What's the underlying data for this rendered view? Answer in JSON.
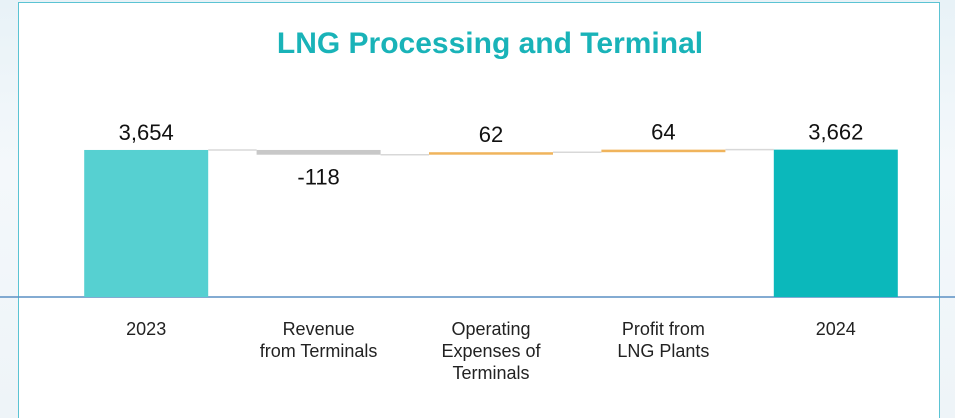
{
  "chart_data": {
    "type": "waterfall",
    "title": "LNG Processing and Terminal",
    "categories": [
      "2023",
      "Revenue\nfrom Terminals",
      "Operating\nExpenses of\nTerminals",
      "Profit from\nLNG Plants",
      "2024"
    ],
    "values": [
      3654,
      -118,
      62,
      64,
      3662
    ],
    "value_labels": [
      "3,654",
      "-118",
      "62",
      "64",
      "3,662"
    ],
    "total_flags": [
      true,
      false,
      false,
      false,
      true
    ],
    "colors": [
      "#56d0d1",
      "#c8c8c8",
      "#f0b45c",
      "#f0b45c",
      "#0bb8bb"
    ],
    "ylim": [
      0,
      4150
    ]
  }
}
